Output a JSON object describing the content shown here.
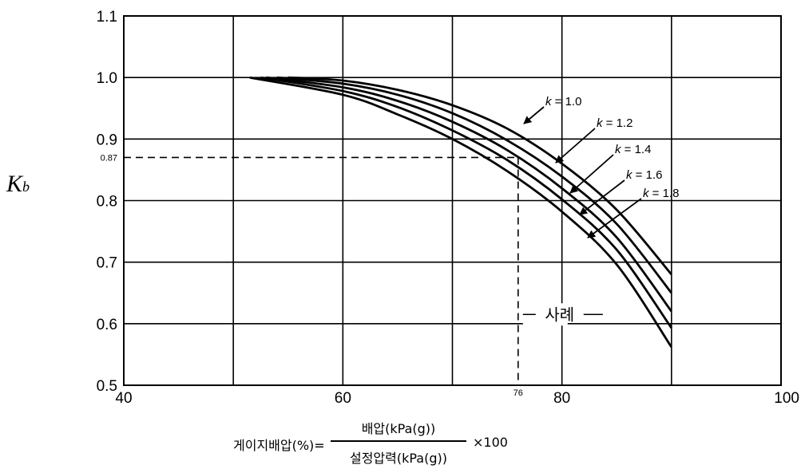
{
  "chart_data": {
    "type": "line",
    "ylabel": "K",
    "ylabel_sub": "b",
    "xlim": [
      40,
      100
    ],
    "ylim": [
      0.5,
      1.1
    ],
    "x_ticks": [
      "40",
      "60",
      "80",
      "100"
    ],
    "x_grid": [
      40,
      50,
      60,
      70,
      80,
      90,
      100
    ],
    "y_ticks": [
      "0.5",
      "0.6",
      "0.7",
      "0.8",
      "0.9",
      "1.0",
      "1.1"
    ],
    "grid": true,
    "series": [
      {
        "name": "k = 1.0",
        "k": "k",
        "eq": " = 1.0",
        "x": [
          55,
          60,
          65,
          70,
          75,
          80,
          85,
          90
        ],
        "y": [
          1.0,
          0.995,
          0.98,
          0.955,
          0.917,
          0.86,
          0.785,
          0.68
        ]
      },
      {
        "name": "k = 1.2",
        "k": "k",
        "eq": " = 1.2",
        "x": [
          54,
          60,
          65,
          70,
          75,
          80,
          85,
          90
        ],
        "y": [
          1.0,
          0.99,
          0.972,
          0.942,
          0.898,
          0.839,
          0.762,
          0.65
        ]
      },
      {
        "name": "k = 1.4",
        "k": "k",
        "eq": " = 1.4",
        "x": [
          53,
          60,
          65,
          70,
          75,
          80,
          85,
          90
        ],
        "y": [
          1.0,
          0.984,
          0.962,
          0.928,
          0.882,
          0.82,
          0.74,
          0.62
        ]
      },
      {
        "name": "k = 1.6",
        "k": "k",
        "eq": " = 1.6",
        "x": [
          52.5,
          60,
          65,
          70,
          75,
          80,
          85,
          90
        ],
        "y": [
          1.0,
          0.978,
          0.952,
          0.914,
          0.866,
          0.802,
          0.72,
          0.593
        ]
      },
      {
        "name": "k = 1.8",
        "k": "k",
        "eq": " = 1.8",
        "x": [
          51.5,
          60,
          65,
          70,
          75,
          80,
          85,
          90
        ],
        "y": [
          1.0,
          0.972,
          0.94,
          0.9,
          0.848,
          0.782,
          0.696,
          0.562
        ]
      }
    ],
    "annotations": {
      "example_label": "사례",
      "example_x": 76,
      "example_x_label": "76",
      "example_y": 0.87,
      "example_y_label": "0.87"
    }
  },
  "formula": {
    "lhs": "게이지배압(%)=",
    "numerator": "배압(kPa(g))",
    "denominator": "설정압력(kPa(g))",
    "multiplier": "×100"
  }
}
